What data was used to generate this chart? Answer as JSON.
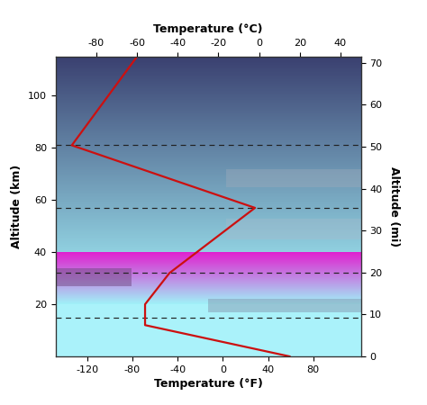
{
  "title_top": "Temperature (°C)",
  "title_bottom": "Temperature (°F)",
  "ylabel_left": "Altitude (km)",
  "ylabel_right": "Altitude (mi)",
  "xlim_C": [
    -100,
    50
  ],
  "ylim_km": [
    0,
    115
  ],
  "ylim_mi": [
    0,
    71.46
  ],
  "xticks_C": [
    -80,
    -60,
    -40,
    -20,
    0,
    20,
    40
  ],
  "xticks_F": [
    -120,
    -80,
    -40,
    0,
    40,
    80
  ],
  "yticks_km": [
    20,
    40,
    60,
    80,
    100
  ],
  "yticks_mi": [
    0,
    10,
    20,
    30,
    40,
    50,
    60,
    70
  ],
  "dashed_lines_km": [
    15,
    32,
    57,
    81
  ],
  "temp_profile_km": [
    0,
    12,
    20,
    32,
    57,
    81,
    115
  ],
  "temp_profile_C": [
    15,
    -56,
    -56,
    -44,
    -2,
    -92,
    -60
  ],
  "line_color": "#cc1010",
  "line_width": 1.6,
  "trop_color": "#a8f0f8",
  "strat_bot": "#c040c0",
  "strat_top": "#e060e0",
  "upper_bot": "#88c8d8",
  "upper_top": "#4a5888"
}
